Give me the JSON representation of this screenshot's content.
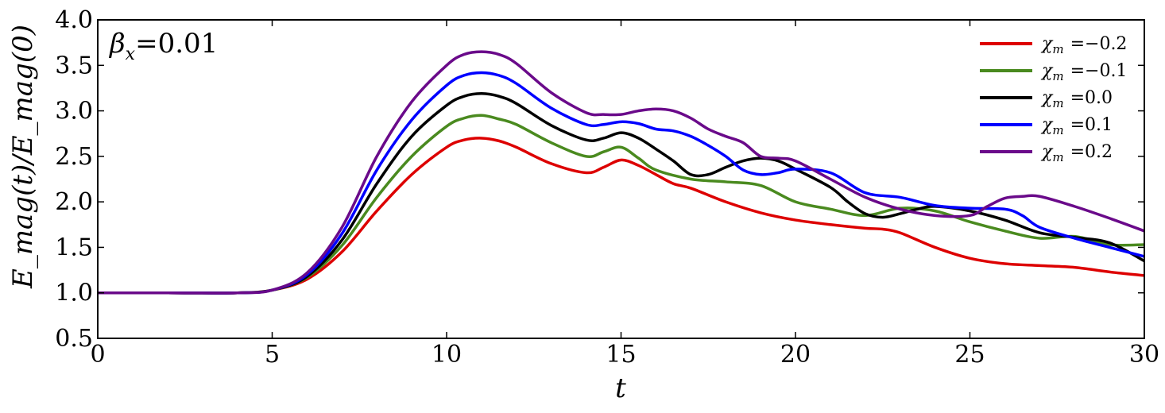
{
  "chart_data": {
    "type": "line",
    "xlabel": "t",
    "ylabel": "E_mag(t)/E_mag(0)",
    "xlim": [
      0,
      30
    ],
    "ylim": [
      0.5,
      4.0
    ],
    "xticks": [
      0,
      5,
      10,
      15,
      20,
      25,
      30
    ],
    "yticks": [
      0.5,
      1.0,
      1.5,
      2.0,
      2.5,
      3.0,
      3.5,
      4.0
    ],
    "xtick_labels": [
      "0",
      "5",
      "10",
      "15",
      "20",
      "25",
      "30"
    ],
    "ytick_labels": [
      "0.5",
      "1.0",
      "1.5",
      "2.0",
      "2.5",
      "3.0",
      "3.5",
      "4.0"
    ],
    "grid": false,
    "legend_position": "top-right",
    "annotation": {
      "symbol": "β",
      "subscript": "x",
      "value": "=0.01"
    },
    "legend_symbol": "χ",
    "legend_subscript": "m",
    "series": [
      {
        "name": "=−0.2",
        "color": "#dd0000",
        "x": [
          0,
          2,
          4,
          5,
          6,
          7,
          8,
          9,
          10,
          10.5,
          11,
          11.5,
          12,
          13,
          14,
          14.5,
          15,
          15.5,
          16,
          16.5,
          17,
          18,
          19,
          20,
          21,
          22,
          22.5,
          23,
          24,
          25,
          26,
          27,
          28,
          29,
          30
        ],
        "y": [
          1.0,
          1.0,
          1.0,
          1.03,
          1.15,
          1.45,
          1.9,
          2.3,
          2.6,
          2.68,
          2.7,
          2.67,
          2.6,
          2.42,
          2.32,
          2.38,
          2.46,
          2.4,
          2.3,
          2.2,
          2.15,
          2.0,
          1.88,
          1.8,
          1.75,
          1.71,
          1.7,
          1.66,
          1.5,
          1.38,
          1.32,
          1.3,
          1.28,
          1.23,
          1.19
        ]
      },
      {
        "name": "=−0.1",
        "color": "#4a8a1f",
        "x": [
          0,
          2,
          4,
          5,
          6,
          7,
          8,
          9,
          10,
          10.5,
          11,
          11.5,
          12,
          13,
          14,
          14.5,
          15,
          15.5,
          16,
          17,
          18,
          19,
          20,
          21,
          22,
          23,
          24,
          25,
          26,
          27,
          28,
          29,
          30
        ],
        "y": [
          1.0,
          1.0,
          1.0,
          1.03,
          1.17,
          1.52,
          2.05,
          2.5,
          2.83,
          2.92,
          2.95,
          2.91,
          2.85,
          2.65,
          2.5,
          2.55,
          2.6,
          2.48,
          2.35,
          2.25,
          2.22,
          2.18,
          2.0,
          1.92,
          1.85,
          1.93,
          1.9,
          1.78,
          1.68,
          1.6,
          1.62,
          1.53,
          1.53
        ]
      },
      {
        "name": "=0.0",
        "color": "#000000",
        "x": [
          0,
          2,
          4,
          5,
          6,
          7,
          8,
          9,
          10,
          10.5,
          11,
          11.5,
          12,
          13,
          14,
          14.5,
          15,
          15.5,
          16,
          16.5,
          17,
          17.5,
          18,
          18.5,
          19,
          19.5,
          20,
          21,
          21.5,
          22,
          22.5,
          23,
          23.5,
          24,
          25,
          26,
          27,
          28,
          29,
          30
        ],
        "y": [
          1.0,
          1.0,
          1.0,
          1.03,
          1.18,
          1.58,
          2.2,
          2.72,
          3.06,
          3.16,
          3.19,
          3.16,
          3.08,
          2.84,
          2.68,
          2.7,
          2.76,
          2.7,
          2.58,
          2.45,
          2.3,
          2.3,
          2.38,
          2.45,
          2.48,
          2.45,
          2.36,
          2.16,
          2.0,
          1.87,
          1.83,
          1.87,
          1.92,
          1.95,
          1.9,
          1.8,
          1.66,
          1.61,
          1.55,
          1.35
        ]
      },
      {
        "name": "=0.1",
        "color": "#0000ff",
        "x": [
          0,
          2,
          4,
          5,
          6,
          7,
          8,
          9,
          10,
          10.5,
          11,
          11.5,
          12,
          13,
          14,
          14.5,
          15,
          15.5,
          16,
          16.5,
          17,
          17.5,
          18,
          18.5,
          19,
          19.5,
          20,
          21,
          22,
          23,
          24,
          25,
          26,
          26.5,
          27,
          28,
          29,
          30
        ],
        "y": [
          1.0,
          1.0,
          1.0,
          1.03,
          1.2,
          1.65,
          2.35,
          2.9,
          3.28,
          3.39,
          3.42,
          3.39,
          3.3,
          3.03,
          2.85,
          2.85,
          2.88,
          2.86,
          2.8,
          2.78,
          2.72,
          2.62,
          2.5,
          2.35,
          2.3,
          2.32,
          2.36,
          2.32,
          2.1,
          2.05,
          1.96,
          1.93,
          1.92,
          1.85,
          1.72,
          1.6,
          1.5,
          1.4
        ]
      },
      {
        "name": "=0.2",
        "color": "#6a0a8a",
        "x": [
          0,
          2,
          4,
          5,
          6,
          7,
          8,
          9,
          10,
          10.5,
          11,
          11.5,
          12,
          13,
          14,
          14.5,
          15,
          15.5,
          16,
          16.5,
          17,
          17.5,
          18,
          18.5,
          19,
          19.5,
          20,
          21,
          22,
          23,
          24,
          25,
          25.5,
          26,
          26.5,
          27,
          28,
          29,
          30
        ],
        "y": [
          1.0,
          1.0,
          1.0,
          1.03,
          1.22,
          1.72,
          2.5,
          3.1,
          3.5,
          3.62,
          3.65,
          3.62,
          3.52,
          3.2,
          2.98,
          2.96,
          2.96,
          3.0,
          3.02,
          3.0,
          2.92,
          2.8,
          2.72,
          2.65,
          2.5,
          2.48,
          2.45,
          2.25,
          2.05,
          1.92,
          1.85,
          1.85,
          1.95,
          2.04,
          2.06,
          2.06,
          1.95,
          1.82,
          1.68
        ]
      }
    ]
  }
}
